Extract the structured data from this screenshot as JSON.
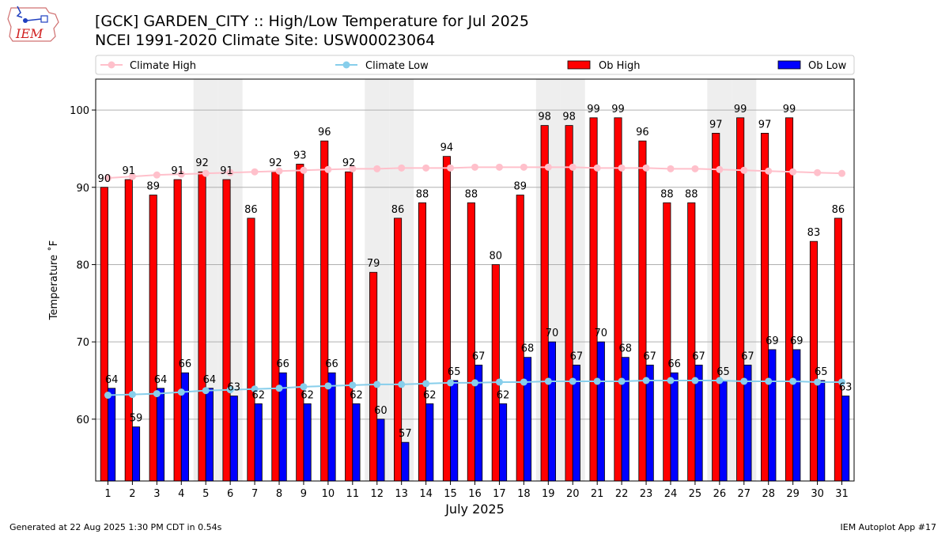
{
  "header": {
    "title_line1": "[GCK] GARDEN_CITY :: High/Low Temperature for Jul 2025",
    "title_line2": "NCEI 1991-2020 Climate Site: USW00023064",
    "logo_text": "IEM"
  },
  "footer": {
    "generated": "Generated at 22 Aug 2025 1:30 PM CDT in 0.54s",
    "app": "IEM Autoplot App #17"
  },
  "colors": {
    "ob_high": "#ff0000",
    "ob_low": "#0000ff",
    "climate_high": "#ffc0cb",
    "climate_low": "#87ceeb",
    "weekend_shade": "#eeeeee",
    "grid": "#b0b0b0"
  },
  "chart_data": {
    "type": "bar",
    "title": "[GCK] GARDEN_CITY :: High/Low Temperature for Jul 2025",
    "subtitle": "NCEI 1991-2020 Climate Site: USW00023064",
    "xlabel": "July 2025",
    "ylabel": "Temperature ˚F",
    "ylim": [
      52,
      104
    ],
    "yticks": [
      60,
      70,
      80,
      90,
      100
    ],
    "grid": "horizontal",
    "legend_position": "top",
    "categories": [
      "1",
      "2",
      "3",
      "4",
      "5",
      "6",
      "7",
      "8",
      "9",
      "10",
      "11",
      "12",
      "13",
      "14",
      "15",
      "16",
      "17",
      "18",
      "19",
      "20",
      "21",
      "22",
      "23",
      "24",
      "25",
      "26",
      "27",
      "28",
      "29",
      "30",
      "31"
    ],
    "shaded_days": [
      5,
      6,
      12,
      13,
      19,
      20,
      26,
      27
    ],
    "series": [
      {
        "name": "Climate High",
        "kind": "line",
        "values": [
          91.2,
          91.4,
          91.6,
          91.7,
          91.8,
          91.9,
          92.0,
          92.1,
          92.2,
          92.3,
          92.4,
          92.4,
          92.5,
          92.5,
          92.5,
          92.6,
          92.6,
          92.6,
          92.6,
          92.6,
          92.5,
          92.5,
          92.5,
          92.4,
          92.4,
          92.3,
          92.2,
          92.1,
          92.0,
          91.9,
          91.8
        ]
      },
      {
        "name": "Climate Low",
        "kind": "line",
        "values": [
          63.1,
          63.2,
          63.3,
          63.5,
          63.7,
          63.8,
          63.9,
          64.0,
          64.2,
          64.3,
          64.4,
          64.5,
          64.5,
          64.6,
          64.7,
          64.7,
          64.8,
          64.8,
          64.9,
          64.9,
          64.9,
          64.9,
          65.0,
          65.0,
          65.0,
          65.0,
          64.9,
          64.9,
          64.9,
          64.8,
          64.8
        ]
      },
      {
        "name": "Ob High",
        "kind": "bar",
        "values": [
          90,
          91,
          89,
          91,
          92,
          91,
          86,
          92,
          93,
          96,
          92,
          79,
          86,
          88,
          94,
          88,
          80,
          89,
          98,
          98,
          99,
          99,
          96,
          88,
          88,
          97,
          99,
          97,
          99,
          83,
          86
        ]
      },
      {
        "name": "Ob Low",
        "kind": "bar",
        "values": [
          64,
          59,
          64,
          66,
          64,
          63,
          62,
          66,
          62,
          66,
          62,
          60,
          57,
          62,
          65,
          67,
          62,
          68,
          70,
          67,
          70,
          68,
          67,
          66,
          67,
          65,
          67,
          69,
          69,
          65,
          63
        ]
      }
    ]
  }
}
